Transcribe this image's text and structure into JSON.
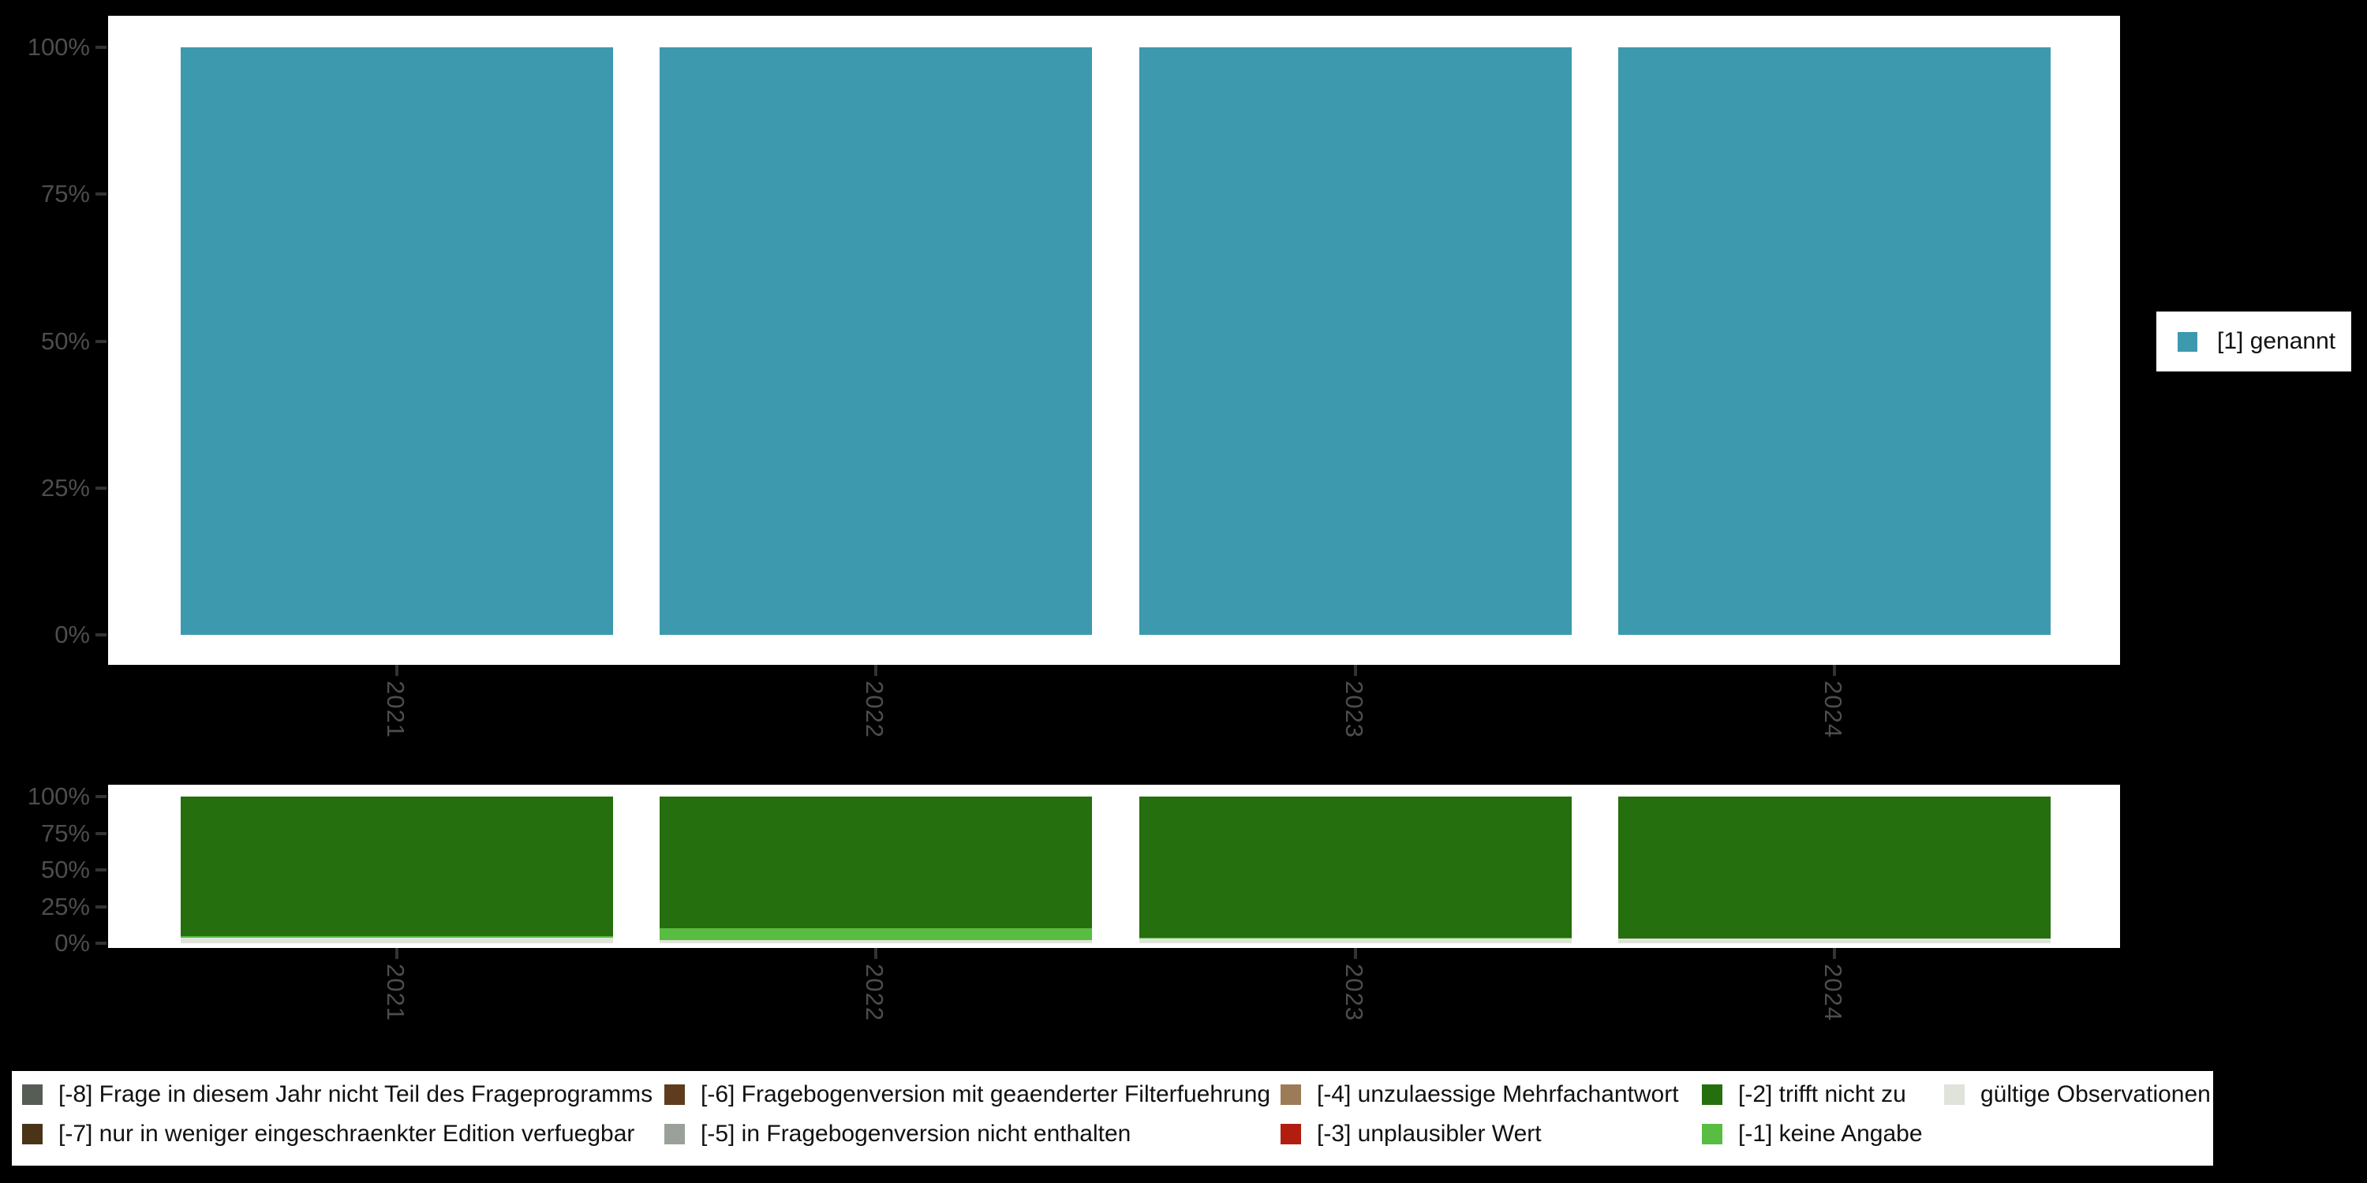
{
  "figure": {
    "background_color": "#000000",
    "panel_color": "#FFFFFF",
    "axis_text_color": "#4D4D4D",
    "tick_mark_color": "#333333"
  },
  "chart_data": [
    {
      "id": "values-panel",
      "type": "bar",
      "stacked": true,
      "orientation": "vertical",
      "categories": [
        "2021",
        "2022",
        "2023",
        "2024"
      ],
      "series": [
        {
          "name": "[1] genannt",
          "color": "#3D99AE",
          "values": [
            100,
            100,
            100,
            100
          ]
        }
      ],
      "y_ticks": [
        "100%",
        "75%",
        "50%",
        "25%",
        "0%"
      ],
      "ylim": [
        0,
        100
      ],
      "unit": "percent",
      "grid": false,
      "legend_position": "right"
    },
    {
      "id": "missings-panel",
      "type": "bar",
      "stacked": true,
      "orientation": "vertical",
      "categories": [
        "2021",
        "2022",
        "2023",
        "2024"
      ],
      "series": [
        {
          "name": "gültige Observationen",
          "color": "#DFE3DA",
          "values": [
            4,
            2,
            3,
            3
          ]
        },
        {
          "name": "[-1] keine Angabe",
          "color": "#58BD41",
          "values": [
            1,
            8,
            1,
            0
          ]
        },
        {
          "name": "[-2] trifft nicht zu",
          "color": "#256F0E",
          "values": [
            95,
            90,
            96,
            97
          ]
        }
      ],
      "y_ticks": [
        "100%",
        "75%",
        "50%",
        "25%",
        "0%"
      ],
      "ylim": [
        0,
        100
      ],
      "unit": "percent",
      "grid": false,
      "legend_position": "bottom"
    }
  ],
  "legend_right": {
    "items": [
      {
        "label": "[1] genannt",
        "color": "#3D99AE"
      }
    ]
  },
  "legend_bottom": {
    "items": [
      {
        "label": "[-8] Frage in diesem Jahr nicht Teil des Frageprogramms",
        "color": "#565D55"
      },
      {
        "label": "[-7] nur in weniger eingeschraenkter Edition verfuegbar",
        "color": "#4B3318"
      },
      {
        "label": "[-6] Fragebogenversion mit geaenderter Filterfuehrung",
        "color": "#5E3C1D"
      },
      {
        "label": "[-5] in Fragebogenversion nicht enthalten",
        "color": "#9AA09A"
      },
      {
        "label": "[-4] unzulaessige Mehrfachantwort",
        "color": "#9C7C57"
      },
      {
        "label": "[-3] unplausibler Wert",
        "color": "#B21D10"
      },
      {
        "label": "[-2] trifft nicht zu",
        "color": "#256F0E"
      },
      {
        "label": "[-1] keine Angabe",
        "color": "#58BD41"
      },
      {
        "label": "gültige Observationen",
        "color": "#DFE3DA"
      }
    ]
  }
}
